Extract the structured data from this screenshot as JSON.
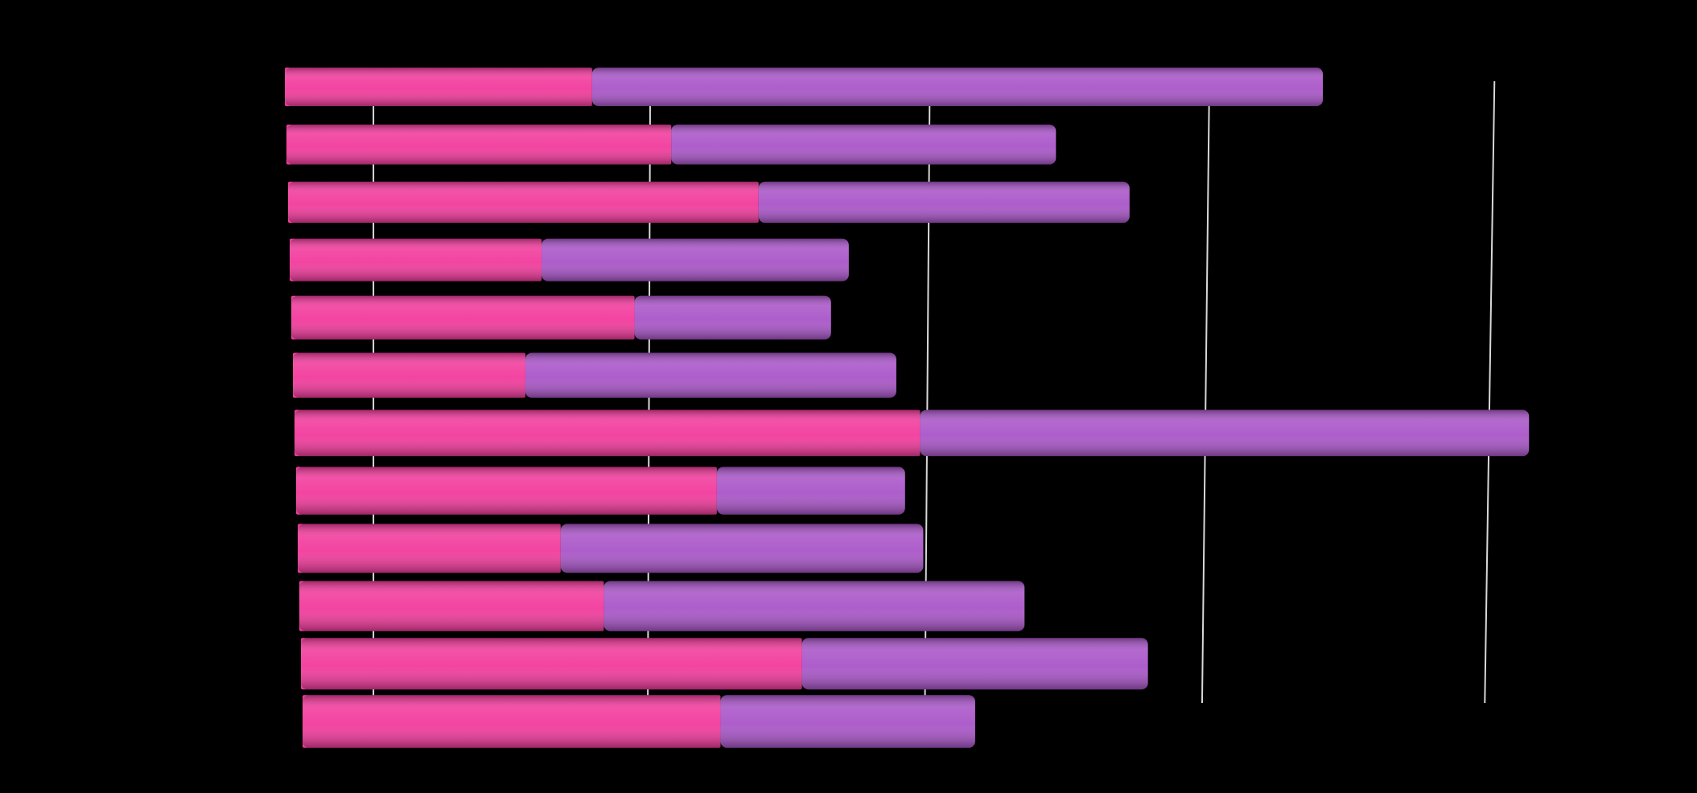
{
  "chart_data": {
    "type": "bar",
    "orientation": "horizontal",
    "stacked": true,
    "categories": [
      null,
      null,
      null,
      null,
      null,
      null,
      null,
      null,
      null,
      null,
      null,
      null
    ],
    "series": [
      {
        "name": null,
        "color": "#f23a9c",
        "values": [
          1.11,
          1.39,
          1.7,
          0.91,
          1.24,
          0.84,
          2.26,
          1.52,
          0.95,
          1.1,
          1.81,
          1.51
        ]
      },
      {
        "name": null,
        "color": "#a955c8",
        "values": [
          2.64,
          1.39,
          1.34,
          1.11,
          0.71,
          1.34,
          2.2,
          0.68,
          1.31,
          1.52,
          1.25,
          0.92
        ]
      }
    ],
    "xlim": [
      0,
      5.1
    ],
    "xticks": [
      0.32,
      1.32,
      2.33,
      3.34,
      4.37
    ],
    "grid": true
  }
}
